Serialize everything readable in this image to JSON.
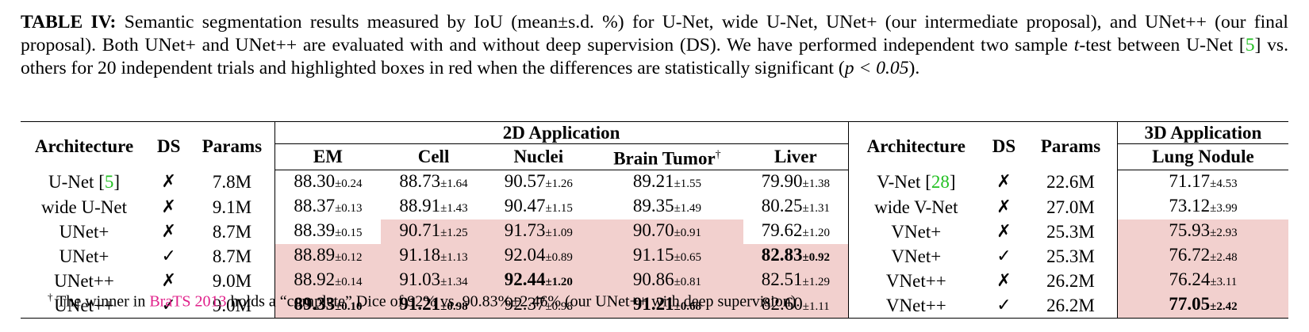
{
  "caption": {
    "label": "TABLE IV:",
    "part1": " Semantic segmentation results measured by IoU (mean±s.d. %) for U-Net, wide U-Net, UNet+ (our intermediate proposal), and UNet++ (our final proposal). Both UNet+ and UNet++ are evaluated with and without deep supervision (DS). We have performed independent two sample ",
    "t_var": "t",
    "part2": "-test between U-Net [",
    "cite": "5",
    "part3": "] vs. others for 20 independent trials and highlighted boxes in red when the differences are statistically significant (",
    "p_expr": "p < 0.05",
    "part4": ")."
  },
  "headers": {
    "architecture": "Architecture",
    "ds": "DS",
    "params": "Params",
    "group_2d": "2D Application",
    "group_3d": "3D Application",
    "cols_2d": [
      "EM",
      "Cell",
      "Nuclei",
      "Brain Tumor",
      "Liver"
    ],
    "dagger": "†",
    "col_3d": "Lung Nodule"
  },
  "rows": [
    {
      "arch": "U-Net [",
      "arch_cite": "5",
      "arch_tail": "]",
      "ds": "✗",
      "params": "7.8M",
      "cells": [
        [
          "88.30",
          "±0.24"
        ],
        [
          "88.73",
          "±1.64"
        ],
        [
          "90.57",
          "±1.26"
        ],
        [
          "89.21",
          "±1.55"
        ],
        [
          "79.90",
          "±1.38"
        ]
      ],
      "arch3d": "V-Net [",
      "arch3d_cite": "28",
      "arch3d_tail": "]",
      "ds3d": "✗",
      "params3d": "22.6M",
      "cell3d": [
        "71.17",
        "±4.53"
      ]
    },
    {
      "arch": "wide U-Net",
      "arch_cite": "",
      "arch_tail": "",
      "ds": "✗",
      "params": "9.1M",
      "cells": [
        [
          "88.37",
          "±0.13"
        ],
        [
          "88.91",
          "±1.43"
        ],
        [
          "90.47",
          "±1.15"
        ],
        [
          "89.35",
          "±1.49"
        ],
        [
          "80.25",
          "±1.31"
        ]
      ],
      "arch3d": "wide V-Net",
      "arch3d_cite": "",
      "arch3d_tail": "",
      "ds3d": "✗",
      "params3d": "27.0M",
      "cell3d": [
        "73.12",
        "±3.99"
      ]
    },
    {
      "arch": "UNet+",
      "arch_cite": "",
      "arch_tail": "",
      "ds": "✗",
      "params": "8.7M",
      "cells": [
        [
          "88.39",
          "±0.15"
        ],
        [
          "90.71",
          "±1.25"
        ],
        [
          "91.73",
          "±1.09"
        ],
        [
          "90.70",
          "±0.91"
        ],
        [
          "79.62",
          "±1.20"
        ]
      ],
      "arch3d": "VNet+",
      "arch3d_cite": "",
      "arch3d_tail": "",
      "ds3d": "✗",
      "params3d": "25.3M",
      "cell3d": [
        "75.93",
        "±2.93"
      ]
    },
    {
      "arch": "UNet+",
      "arch_cite": "",
      "arch_tail": "",
      "ds": "✓",
      "params": "8.7M",
      "cells": [
        [
          "88.89",
          "±0.12"
        ],
        [
          "91.18",
          "±1.13"
        ],
        [
          "92.04",
          "±0.89"
        ],
        [
          "91.15",
          "±0.65"
        ],
        [
          "82.83",
          "±0.92"
        ]
      ],
      "arch3d": "VNet+",
      "arch3d_cite": "",
      "arch3d_tail": "",
      "ds3d": "✓",
      "params3d": "25.3M",
      "cell3d": [
        "76.72",
        "±2.48"
      ]
    },
    {
      "arch": "UNet++",
      "arch_cite": "",
      "arch_tail": "",
      "ds": "✗",
      "params": "9.0M",
      "cells": [
        [
          "88.92",
          "±0.14"
        ],
        [
          "91.03",
          "±1.34"
        ],
        [
          "92.44",
          "±1.20"
        ],
        [
          "90.86",
          "±0.81"
        ],
        [
          "82.51",
          "±1.29"
        ]
      ],
      "arch3d": "VNet++",
      "arch3d_cite": "",
      "arch3d_tail": "",
      "ds3d": "✗",
      "params3d": "26.2M",
      "cell3d": [
        "76.24",
        "±3.11"
      ]
    },
    {
      "arch": "UNet++",
      "arch_cite": "",
      "arch_tail": "",
      "ds": "✓",
      "params": "9.0M",
      "cells": [
        [
          "89.33",
          "±0.10"
        ],
        [
          "91.21",
          "±0.98"
        ],
        [
          "92.37",
          "±0.98"
        ],
        [
          "91.21",
          "±0.68"
        ],
        [
          "82.60",
          "±1.11"
        ]
      ],
      "arch3d": "VNet++",
      "arch3d_cite": "",
      "arch3d_tail": "",
      "ds3d": "✓",
      "params3d": "26.2M",
      "cell3d": [
        "77.05",
        "±2.42"
      ]
    }
  ],
  "footnote": {
    "mark": "†",
    "part1": " The winner in ",
    "link": "BraTS 2013",
    "part2": " holds a “complete” Dice of 92% vs. 90.83%±2.46% (our UNet++ with deep supervision)."
  }
}
